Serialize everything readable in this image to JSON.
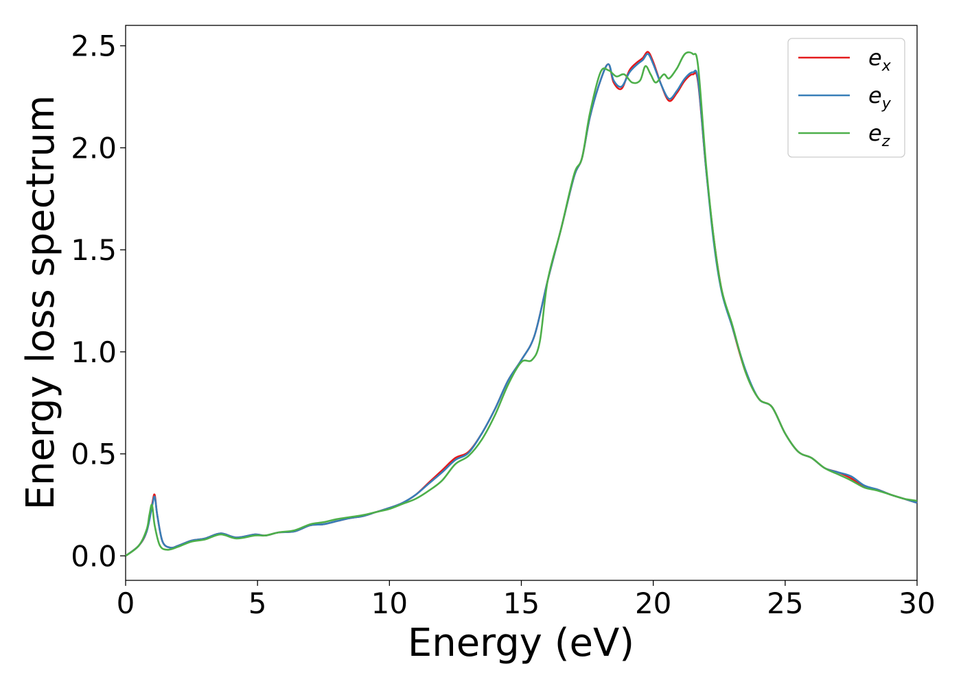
{
  "chart_data": {
    "type": "line",
    "xlabel": "Energy (eV)",
    "ylabel": "Energy loss spectrum",
    "xlim": [
      0,
      30
    ],
    "ylim": [
      -0.12,
      2.6
    ],
    "xticks": [
      0,
      5,
      10,
      15,
      20,
      25,
      30
    ],
    "xtick_labels": [
      "0",
      "5",
      "10",
      "15",
      "20",
      "25",
      "30"
    ],
    "yticks": [
      0.0,
      0.5,
      1.0,
      1.5,
      2.0,
      2.5
    ],
    "ytick_labels": [
      "0.0",
      "0.5",
      "1.0",
      "1.5",
      "2.0",
      "2.5"
    ],
    "grid": false,
    "legend_position": "top-right",
    "series": [
      {
        "name": "e",
        "subscript": "x",
        "color": "#e41a1c",
        "x": [
          0,
          0.5,
          0.8,
          1.0,
          1.1,
          1.2,
          1.4,
          1.7,
          2.0,
          2.5,
          3.0,
          3.6,
          4.2,
          4.9,
          5.3,
          5.8,
          6.4,
          7.0,
          7.5,
          8.0,
          8.5,
          9.0,
          9.5,
          10.0,
          10.5,
          11.0,
          11.5,
          12.0,
          12.5,
          13.0,
          13.5,
          14.0,
          14.5,
          15.0,
          15.5,
          16.0,
          16.5,
          17.0,
          17.3,
          17.6,
          18.0,
          18.3,
          18.5,
          18.8,
          19.1,
          19.4,
          19.6,
          19.8,
          20.0,
          20.3,
          20.6,
          20.9,
          21.2,
          21.5,
          21.7,
          22.0,
          22.3,
          22.6,
          23.0,
          23.5,
          24.0,
          24.5,
          25.0,
          25.5,
          26.0,
          26.5,
          27.0,
          27.5,
          28.0,
          28.5,
          29.0,
          29.5,
          30.0
        ],
        "values": [
          0.0,
          0.05,
          0.12,
          0.25,
          0.3,
          0.2,
          0.07,
          0.04,
          0.05,
          0.075,
          0.085,
          0.11,
          0.09,
          0.105,
          0.1,
          0.115,
          0.12,
          0.15,
          0.155,
          0.17,
          0.185,
          0.195,
          0.215,
          0.235,
          0.26,
          0.3,
          0.36,
          0.42,
          0.48,
          0.51,
          0.6,
          0.72,
          0.86,
          0.96,
          1.08,
          1.35,
          1.6,
          1.86,
          1.95,
          2.15,
          2.33,
          2.41,
          2.32,
          2.29,
          2.38,
          2.42,
          2.44,
          2.47,
          2.42,
          2.31,
          2.23,
          2.27,
          2.33,
          2.36,
          2.32,
          1.9,
          1.55,
          1.3,
          1.12,
          0.9,
          0.77,
          0.73,
          0.6,
          0.51,
          0.48,
          0.43,
          0.41,
          0.38,
          0.34,
          0.325,
          0.3,
          0.28,
          0.26
        ]
      },
      {
        "name": "e",
        "subscript": "y",
        "color": "#377eb8",
        "x": [
          0,
          0.5,
          0.8,
          1.0,
          1.1,
          1.2,
          1.4,
          1.7,
          2.0,
          2.5,
          3.0,
          3.6,
          4.2,
          4.9,
          5.3,
          5.8,
          6.4,
          7.0,
          7.5,
          8.0,
          8.5,
          9.0,
          9.5,
          10.0,
          10.5,
          11.0,
          11.5,
          12.0,
          12.5,
          13.0,
          13.5,
          14.0,
          14.5,
          15.0,
          15.5,
          16.0,
          16.5,
          17.0,
          17.3,
          17.6,
          18.0,
          18.3,
          18.5,
          18.8,
          19.1,
          19.4,
          19.6,
          19.8,
          20.0,
          20.3,
          20.6,
          20.9,
          21.2,
          21.5,
          21.7,
          22.0,
          22.3,
          22.6,
          23.0,
          23.5,
          24.0,
          24.5,
          25.0,
          25.5,
          26.0,
          26.5,
          27.0,
          27.5,
          28.0,
          28.5,
          29.0,
          29.5,
          30.0
        ],
        "values": [
          0.0,
          0.05,
          0.12,
          0.24,
          0.29,
          0.2,
          0.07,
          0.04,
          0.05,
          0.075,
          0.085,
          0.11,
          0.09,
          0.105,
          0.1,
          0.115,
          0.12,
          0.15,
          0.155,
          0.17,
          0.185,
          0.195,
          0.215,
          0.235,
          0.26,
          0.3,
          0.355,
          0.41,
          0.47,
          0.505,
          0.6,
          0.72,
          0.86,
          0.96,
          1.08,
          1.35,
          1.6,
          1.86,
          1.95,
          2.15,
          2.33,
          2.41,
          2.33,
          2.3,
          2.37,
          2.41,
          2.43,
          2.46,
          2.41,
          2.31,
          2.24,
          2.28,
          2.34,
          2.37,
          2.33,
          1.9,
          1.53,
          1.29,
          1.12,
          0.91,
          0.77,
          0.73,
          0.6,
          0.51,
          0.48,
          0.43,
          0.41,
          0.39,
          0.345,
          0.325,
          0.3,
          0.28,
          0.26
        ]
      },
      {
        "name": "e",
        "subscript": "z",
        "color": "#4daf4a",
        "x": [
          0,
          0.5,
          0.8,
          0.9,
          1.0,
          1.1,
          1.3,
          1.6,
          2.0,
          2.5,
          3.0,
          3.6,
          4.2,
          4.9,
          5.3,
          5.8,
          6.4,
          7.0,
          7.5,
          8.0,
          8.5,
          9.0,
          9.5,
          10.0,
          10.5,
          11.0,
          11.5,
          12.0,
          12.5,
          13.0,
          13.5,
          14.0,
          14.5,
          15.0,
          15.4,
          15.7,
          16.0,
          16.5,
          17.0,
          17.3,
          17.6,
          18.0,
          18.3,
          18.6,
          18.9,
          19.2,
          19.5,
          19.7,
          19.9,
          20.1,
          20.4,
          20.6,
          20.9,
          21.2,
          21.5,
          21.7,
          22.0,
          22.3,
          22.6,
          23.0,
          23.5,
          24.0,
          24.5,
          25.0,
          25.5,
          26.0,
          26.5,
          27.0,
          27.5,
          28.0,
          28.5,
          29.0,
          29.5,
          30.0
        ],
        "values": [
          0.0,
          0.05,
          0.13,
          0.2,
          0.25,
          0.15,
          0.05,
          0.03,
          0.045,
          0.07,
          0.08,
          0.105,
          0.085,
          0.1,
          0.1,
          0.115,
          0.125,
          0.155,
          0.165,
          0.18,
          0.19,
          0.2,
          0.215,
          0.23,
          0.255,
          0.28,
          0.32,
          0.37,
          0.45,
          0.49,
          0.57,
          0.69,
          0.84,
          0.95,
          0.96,
          1.05,
          1.35,
          1.6,
          1.87,
          1.95,
          2.17,
          2.37,
          2.38,
          2.35,
          2.36,
          2.32,
          2.33,
          2.4,
          2.36,
          2.32,
          2.36,
          2.34,
          2.39,
          2.46,
          2.46,
          2.4,
          1.92,
          1.55,
          1.3,
          1.13,
          0.9,
          0.77,
          0.73,
          0.6,
          0.51,
          0.48,
          0.43,
          0.4,
          0.37,
          0.335,
          0.32,
          0.3,
          0.28,
          0.27
        ]
      }
    ]
  }
}
